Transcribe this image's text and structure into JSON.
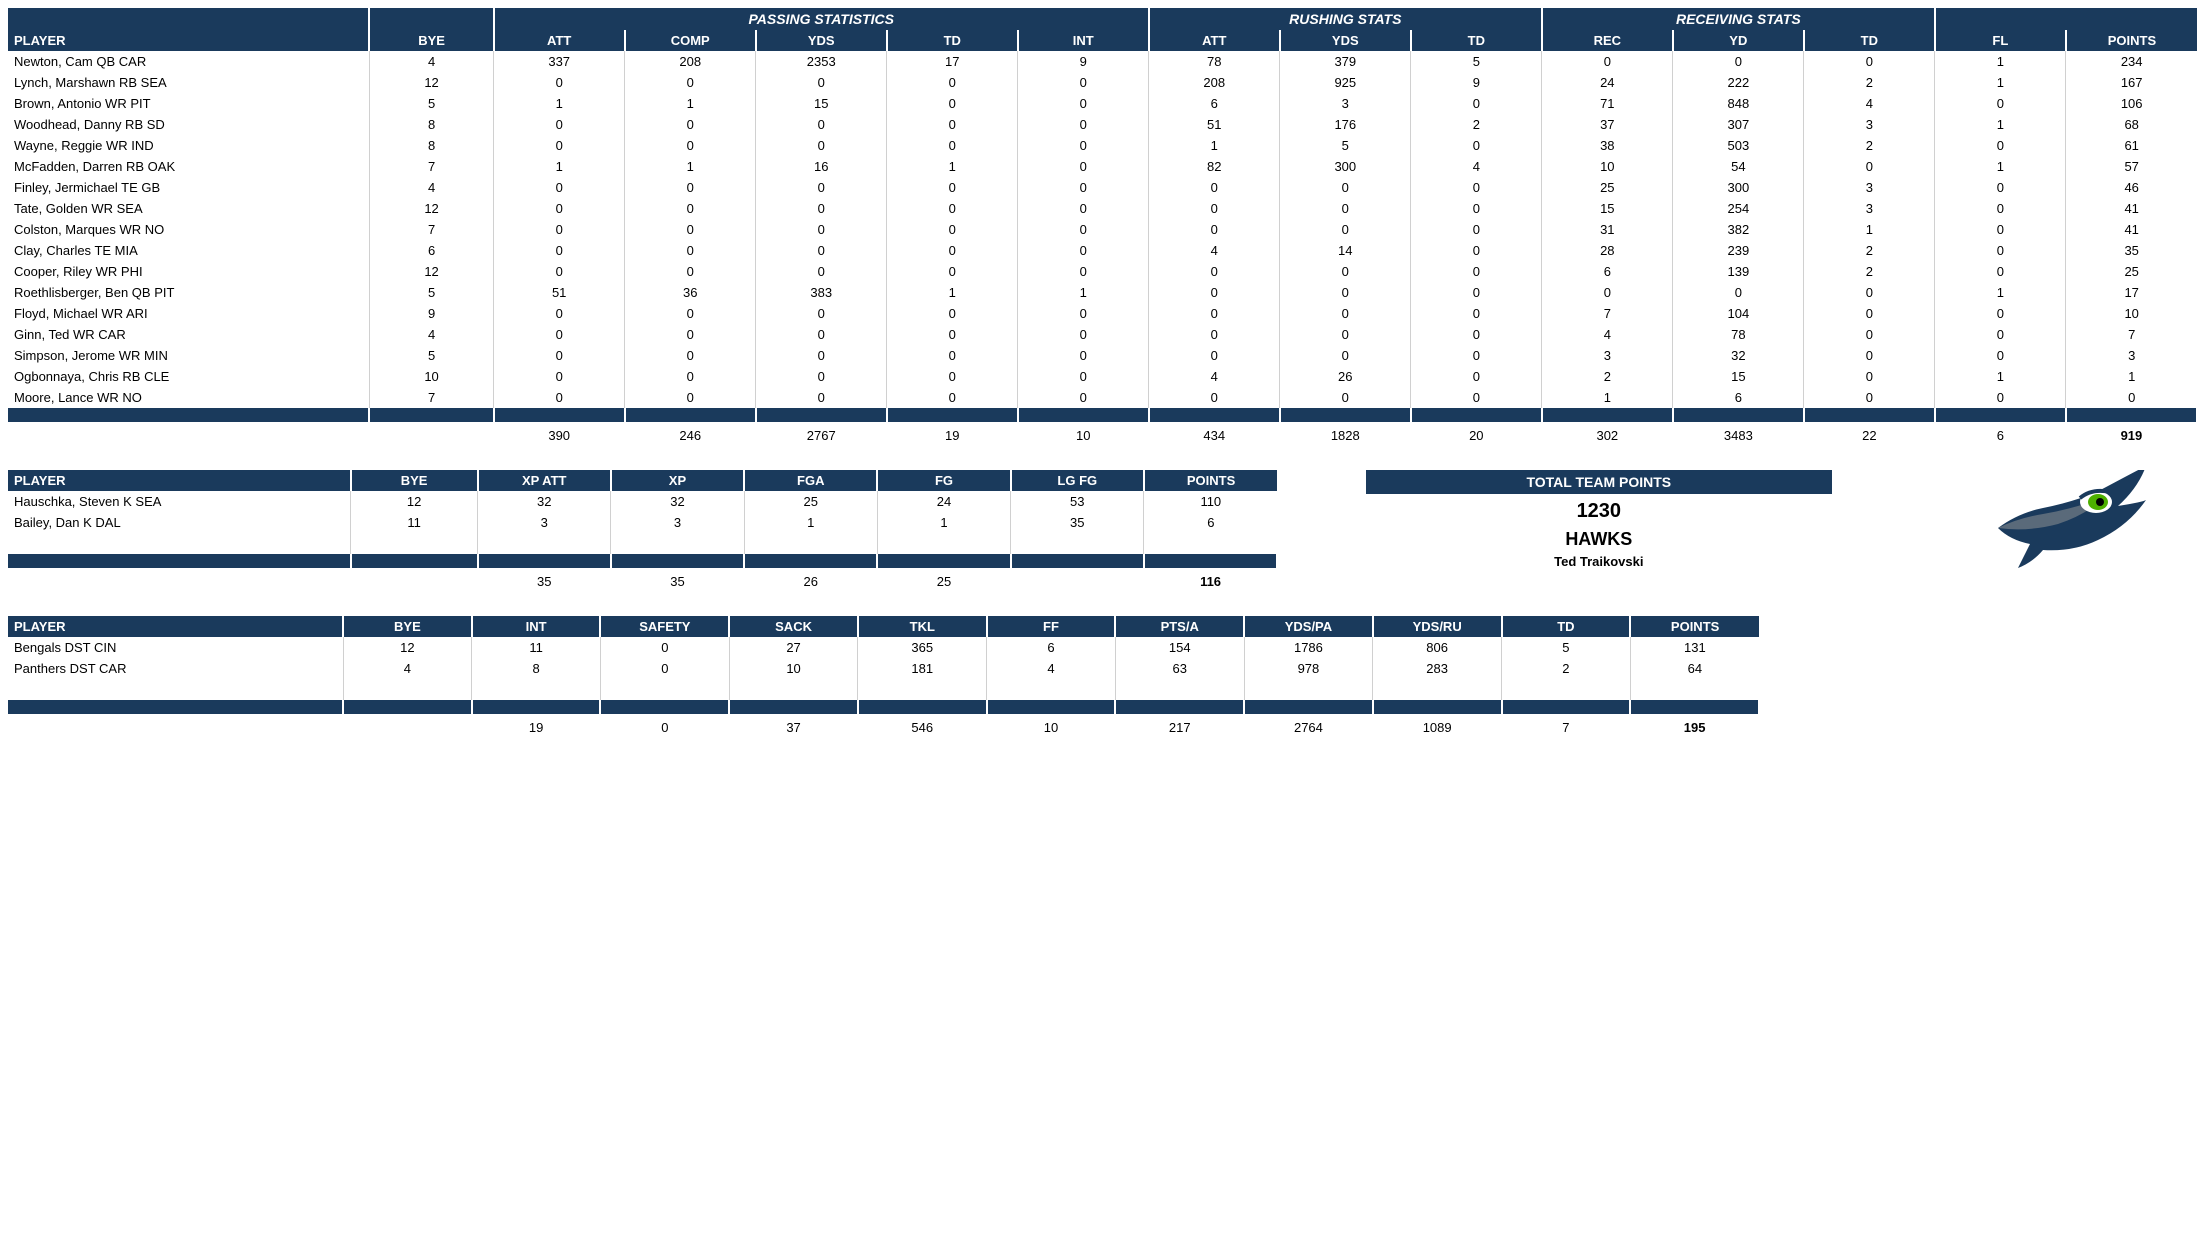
{
  "colors": {
    "header_bg": "#1a3a5c",
    "header_fg": "#ffffff",
    "grid": "#d0d0d0",
    "logo_navy": "#1a3a5c",
    "logo_gray": "#5a6a7a",
    "logo_green": "#4db000"
  },
  "offense": {
    "group_headers": [
      "",
      "",
      "PASSING STATISTICS",
      "RUSHING STATS",
      "RECEIVING STATS",
      ""
    ],
    "group_spans": [
      1,
      1,
      5,
      3,
      3,
      2
    ],
    "columns": [
      "PLAYER",
      "BYE",
      "ATT",
      "COMP",
      "YDS",
      "TD",
      "INT",
      "ATT",
      "YDS",
      "TD",
      "REC",
      "YD",
      "TD",
      "FL",
      "POINTS"
    ],
    "col_widths": [
      "16%",
      "5.5%",
      "5.8%",
      "5.8%",
      "5.8%",
      "5.8%",
      "5.8%",
      "5.8%",
      "5.8%",
      "5.8%",
      "5.8%",
      "5.8%",
      "5.8%",
      "5.8%",
      "5.8%"
    ],
    "rows": [
      [
        "Newton, Cam QB CAR",
        4,
        337,
        208,
        2353,
        17,
        9,
        78,
        379,
        5,
        0,
        0,
        0,
        1,
        234
      ],
      [
        "Lynch, Marshawn RB SEA",
        12,
        0,
        0,
        0,
        0,
        0,
        208,
        925,
        9,
        24,
        222,
        2,
        1,
        167
      ],
      [
        "Brown, Antonio WR PIT",
        5,
        1,
        1,
        15,
        0,
        0,
        6,
        3,
        0,
        71,
        848,
        4,
        0,
        106
      ],
      [
        "Woodhead, Danny RB SD",
        8,
        0,
        0,
        0,
        0,
        0,
        51,
        176,
        2,
        37,
        307,
        3,
        1,
        68
      ],
      [
        "Wayne, Reggie WR IND",
        8,
        0,
        0,
        0,
        0,
        0,
        1,
        5,
        0,
        38,
        503,
        2,
        0,
        61
      ],
      [
        "McFadden, Darren RB OAK",
        7,
        1,
        1,
        16,
        1,
        0,
        82,
        300,
        4,
        10,
        54,
        0,
        1,
        57
      ],
      [
        "Finley, Jermichael TE GB",
        4,
        0,
        0,
        0,
        0,
        0,
        0,
        0,
        0,
        25,
        300,
        3,
        0,
        46
      ],
      [
        "Tate, Golden WR SEA",
        12,
        0,
        0,
        0,
        0,
        0,
        0,
        0,
        0,
        15,
        254,
        3,
        0,
        41
      ],
      [
        "Colston, Marques WR NO",
        7,
        0,
        0,
        0,
        0,
        0,
        0,
        0,
        0,
        31,
        382,
        1,
        0,
        41
      ],
      [
        "Clay, Charles TE MIA",
        6,
        0,
        0,
        0,
        0,
        0,
        4,
        14,
        0,
        28,
        239,
        2,
        0,
        35
      ],
      [
        "Cooper, Riley WR PHI",
        12,
        0,
        0,
        0,
        0,
        0,
        0,
        0,
        0,
        6,
        139,
        2,
        0,
        25
      ],
      [
        "Roethlisberger, Ben QB PIT",
        5,
        51,
        36,
        383,
        1,
        1,
        0,
        0,
        0,
        0,
        0,
        0,
        1,
        17
      ],
      [
        "Floyd, Michael WR ARI",
        9,
        0,
        0,
        0,
        0,
        0,
        0,
        0,
        0,
        7,
        104,
        0,
        0,
        10
      ],
      [
        "Ginn, Ted WR CAR",
        4,
        0,
        0,
        0,
        0,
        0,
        0,
        0,
        0,
        4,
        78,
        0,
        0,
        7
      ],
      [
        "Simpson, Jerome WR MIN",
        5,
        0,
        0,
        0,
        0,
        0,
        0,
        0,
        0,
        3,
        32,
        0,
        0,
        3
      ],
      [
        "Ogbonnaya, Chris RB CLE",
        10,
        0,
        0,
        0,
        0,
        0,
        4,
        26,
        0,
        2,
        15,
        0,
        1,
        1
      ],
      [
        "Moore, Lance WR NO",
        7,
        0,
        0,
        0,
        0,
        0,
        0,
        0,
        0,
        1,
        6,
        0,
        0,
        0
      ]
    ],
    "totals": [
      "",
      "",
      390,
      246,
      2767,
      19,
      10,
      434,
      1828,
      20,
      302,
      3483,
      22,
      6,
      919
    ]
  },
  "kicking": {
    "columns": [
      "PLAYER",
      "BYE",
      "XP ATT",
      "XP",
      "FGA",
      "FG",
      "LG FG",
      "POINTS"
    ],
    "rows": [
      [
        "Hauschka, Steven K SEA",
        12,
        32,
        32,
        25,
        24,
        53,
        110
      ],
      [
        "Bailey, Dan K DAL",
        11,
        3,
        3,
        1,
        1,
        35,
        6
      ]
    ],
    "totals": [
      "",
      "",
      35,
      35,
      26,
      25,
      "",
      116
    ]
  },
  "defense": {
    "columns": [
      "PLAYER",
      "BYE",
      "INT",
      "SAFETY",
      "SACK",
      "TKL",
      "FF",
      "PTS/A",
      "YDS/PA",
      "YDS/RU",
      "TD",
      "POINTS"
    ],
    "rows": [
      [
        "Bengals DST CIN",
        12,
        11,
        0,
        27,
        365,
        6,
        154,
        1786,
        806,
        5,
        131
      ],
      [
        "Panthers DST CAR",
        4,
        8,
        0,
        10,
        181,
        4,
        63,
        978,
        283,
        2,
        64
      ]
    ],
    "totals": [
      "",
      "",
      19,
      0,
      37,
      546,
      10,
      217,
      2764,
      1089,
      7,
      195
    ]
  },
  "team": {
    "header": "TOTAL TEAM POINTS",
    "points": 1230,
    "name": "HAWKS",
    "owner": "Ted Traikovski"
  }
}
